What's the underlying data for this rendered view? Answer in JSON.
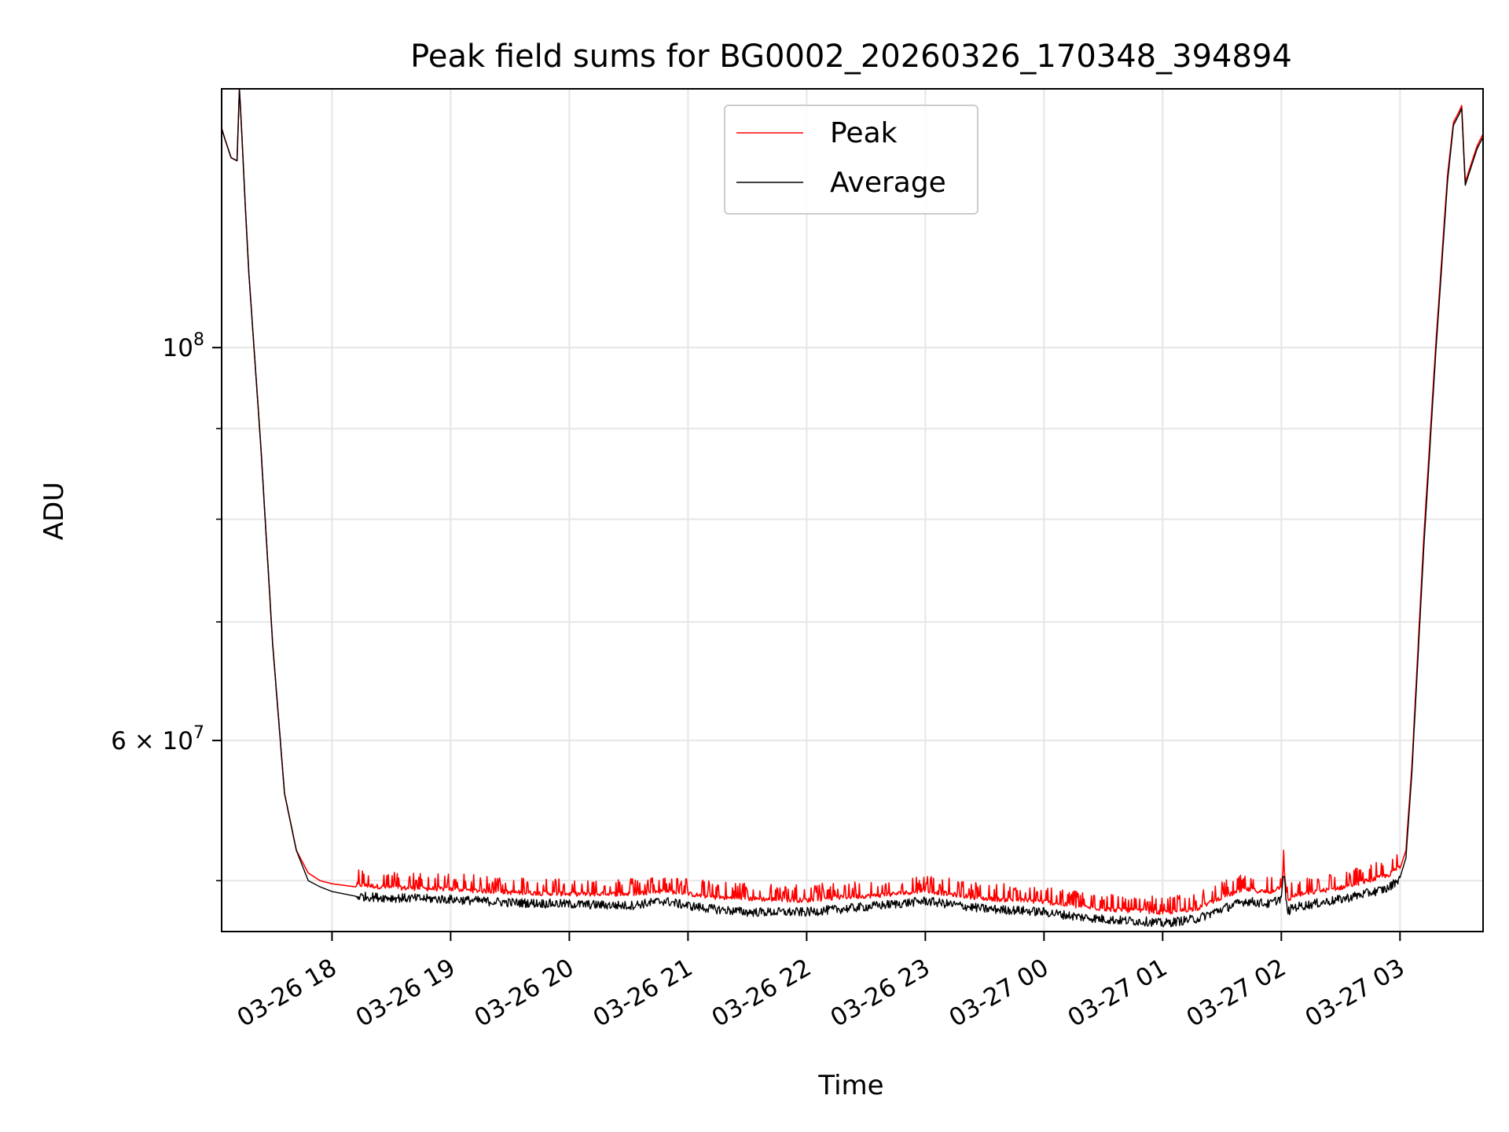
{
  "chart_data": {
    "type": "line",
    "title": "Peak field sums for BG0002_20260326_170348_394894",
    "xlabel": "Time",
    "ylabel": "ADU",
    "scale_y": "log",
    "x_range_hours": [
      -0.93,
      9.7
    ],
    "ylim": [
      46800000,
      140000000
    ],
    "x_ticks": [
      {
        "label": "03-26 18",
        "hour": 0
      },
      {
        "label": "03-26 19",
        "hour": 1
      },
      {
        "label": "03-26 20",
        "hour": 2
      },
      {
        "label": "03-26 21",
        "hour": 3
      },
      {
        "label": "03-26 22",
        "hour": 4
      },
      {
        "label": "03-26 23",
        "hour": 5
      },
      {
        "label": "03-27 00",
        "hour": 6
      },
      {
        "label": "03-27 01",
        "hour": 7
      },
      {
        "label": "03-27 02",
        "hour": 8
      },
      {
        "label": "03-27 03",
        "hour": 9
      }
    ],
    "y_major_ticks": [
      {
        "base": "10",
        "exp": "8",
        "value": 100000000
      },
      {
        "base": "6 × 10",
        "exp": "7",
        "value": 60000000
      }
    ],
    "y_minor_values": [
      50000000,
      70000000,
      80000000,
      90000000
    ],
    "grid": true,
    "legend_position": "top-center",
    "series": [
      {
        "name": "Peak",
        "color": "#ff0000",
        "x": [
          -0.93,
          -0.9,
          -0.85,
          -0.8,
          -0.78,
          -0.76,
          -0.73,
          -0.7,
          -0.6,
          -0.5,
          -0.4,
          -0.3,
          -0.2,
          -0.1,
          0,
          0.2,
          0.5,
          1,
          1.5,
          2,
          2.5,
          2.8,
          3,
          3.2,
          3.5,
          4,
          4.3,
          4.6,
          5,
          5.2,
          5.5,
          5.8,
          6,
          6.3,
          6.6,
          6.9,
          7,
          7.3,
          7.5,
          7.7,
          7.9,
          8,
          8.02,
          8.05,
          8.1,
          8.5,
          8.9,
          9,
          9.05,
          9.1,
          9.2,
          9.3,
          9.4,
          9.45,
          9.5,
          9.52,
          9.55,
          9.6,
          9.65,
          9.7
        ],
        "y": [
          133000000,
          131000000,
          128000000,
          127500000,
          140000000,
          132000000,
          120000000,
          110000000,
          88000000,
          68000000,
          56000000,
          52000000,
          50500000,
          50000000,
          49800000,
          49600000,
          49400000,
          49300000,
          49100000,
          49000000,
          49000000,
          49200000,
          49000000,
          48800000,
          48700000,
          48600000,
          48800000,
          48900000,
          49200000,
          49000000,
          48700000,
          48600000,
          48500000,
          48200000,
          48000000,
          47900000,
          47800000,
          48100000,
          48800000,
          49300000,
          49100000,
          49500000,
          51000000,
          48500000,
          48900000,
          49400000,
          50200000,
          50800000,
          52000000,
          58000000,
          78000000,
          100000000,
          125000000,
          134000000,
          136000000,
          137000000,
          124000000,
          127000000,
          130000000,
          132000000
        ]
      },
      {
        "name": "Average",
        "color": "#000000",
        "x": [
          -0.93,
          -0.9,
          -0.85,
          -0.8,
          -0.78,
          -0.76,
          -0.73,
          -0.7,
          -0.6,
          -0.5,
          -0.4,
          -0.3,
          -0.2,
          -0.1,
          0,
          0.2,
          0.5,
          1,
          1.5,
          2,
          2.5,
          2.8,
          3,
          3.2,
          3.5,
          4,
          4.3,
          4.6,
          5,
          5.2,
          5.5,
          5.8,
          6,
          6.3,
          6.6,
          6.9,
          7,
          7.3,
          7.5,
          7.7,
          7.9,
          8,
          8.02,
          8.05,
          8.1,
          8.5,
          8.9,
          9,
          9.05,
          9.1,
          9.2,
          9.3,
          9.4,
          9.45,
          9.5,
          9.52,
          9.55,
          9.6,
          9.65,
          9.7
        ],
        "y": [
          133000000,
          131000000,
          128000000,
          127500000,
          140000000,
          132000000,
          120000000,
          110000000,
          88000000,
          68000000,
          56000000,
          52000000,
          50000000,
          49600000,
          49300000,
          49000000,
          48900000,
          48800000,
          48600000,
          48500000,
          48400000,
          48700000,
          48400000,
          48200000,
          48000000,
          48000000,
          48200000,
          48400000,
          48700000,
          48500000,
          48200000,
          48100000,
          48000000,
          47700000,
          47500000,
          47400000,
          47300000,
          47600000,
          48200000,
          48700000,
          48500000,
          48900000,
          50500000,
          48000000,
          48300000,
          48800000,
          49500000,
          50200000,
          51500000,
          57500000,
          77000000,
          99000000,
          124000000,
          133500000,
          135500000,
          136500000,
          123500000,
          126500000,
          129500000,
          131500000
        ]
      }
    ]
  }
}
